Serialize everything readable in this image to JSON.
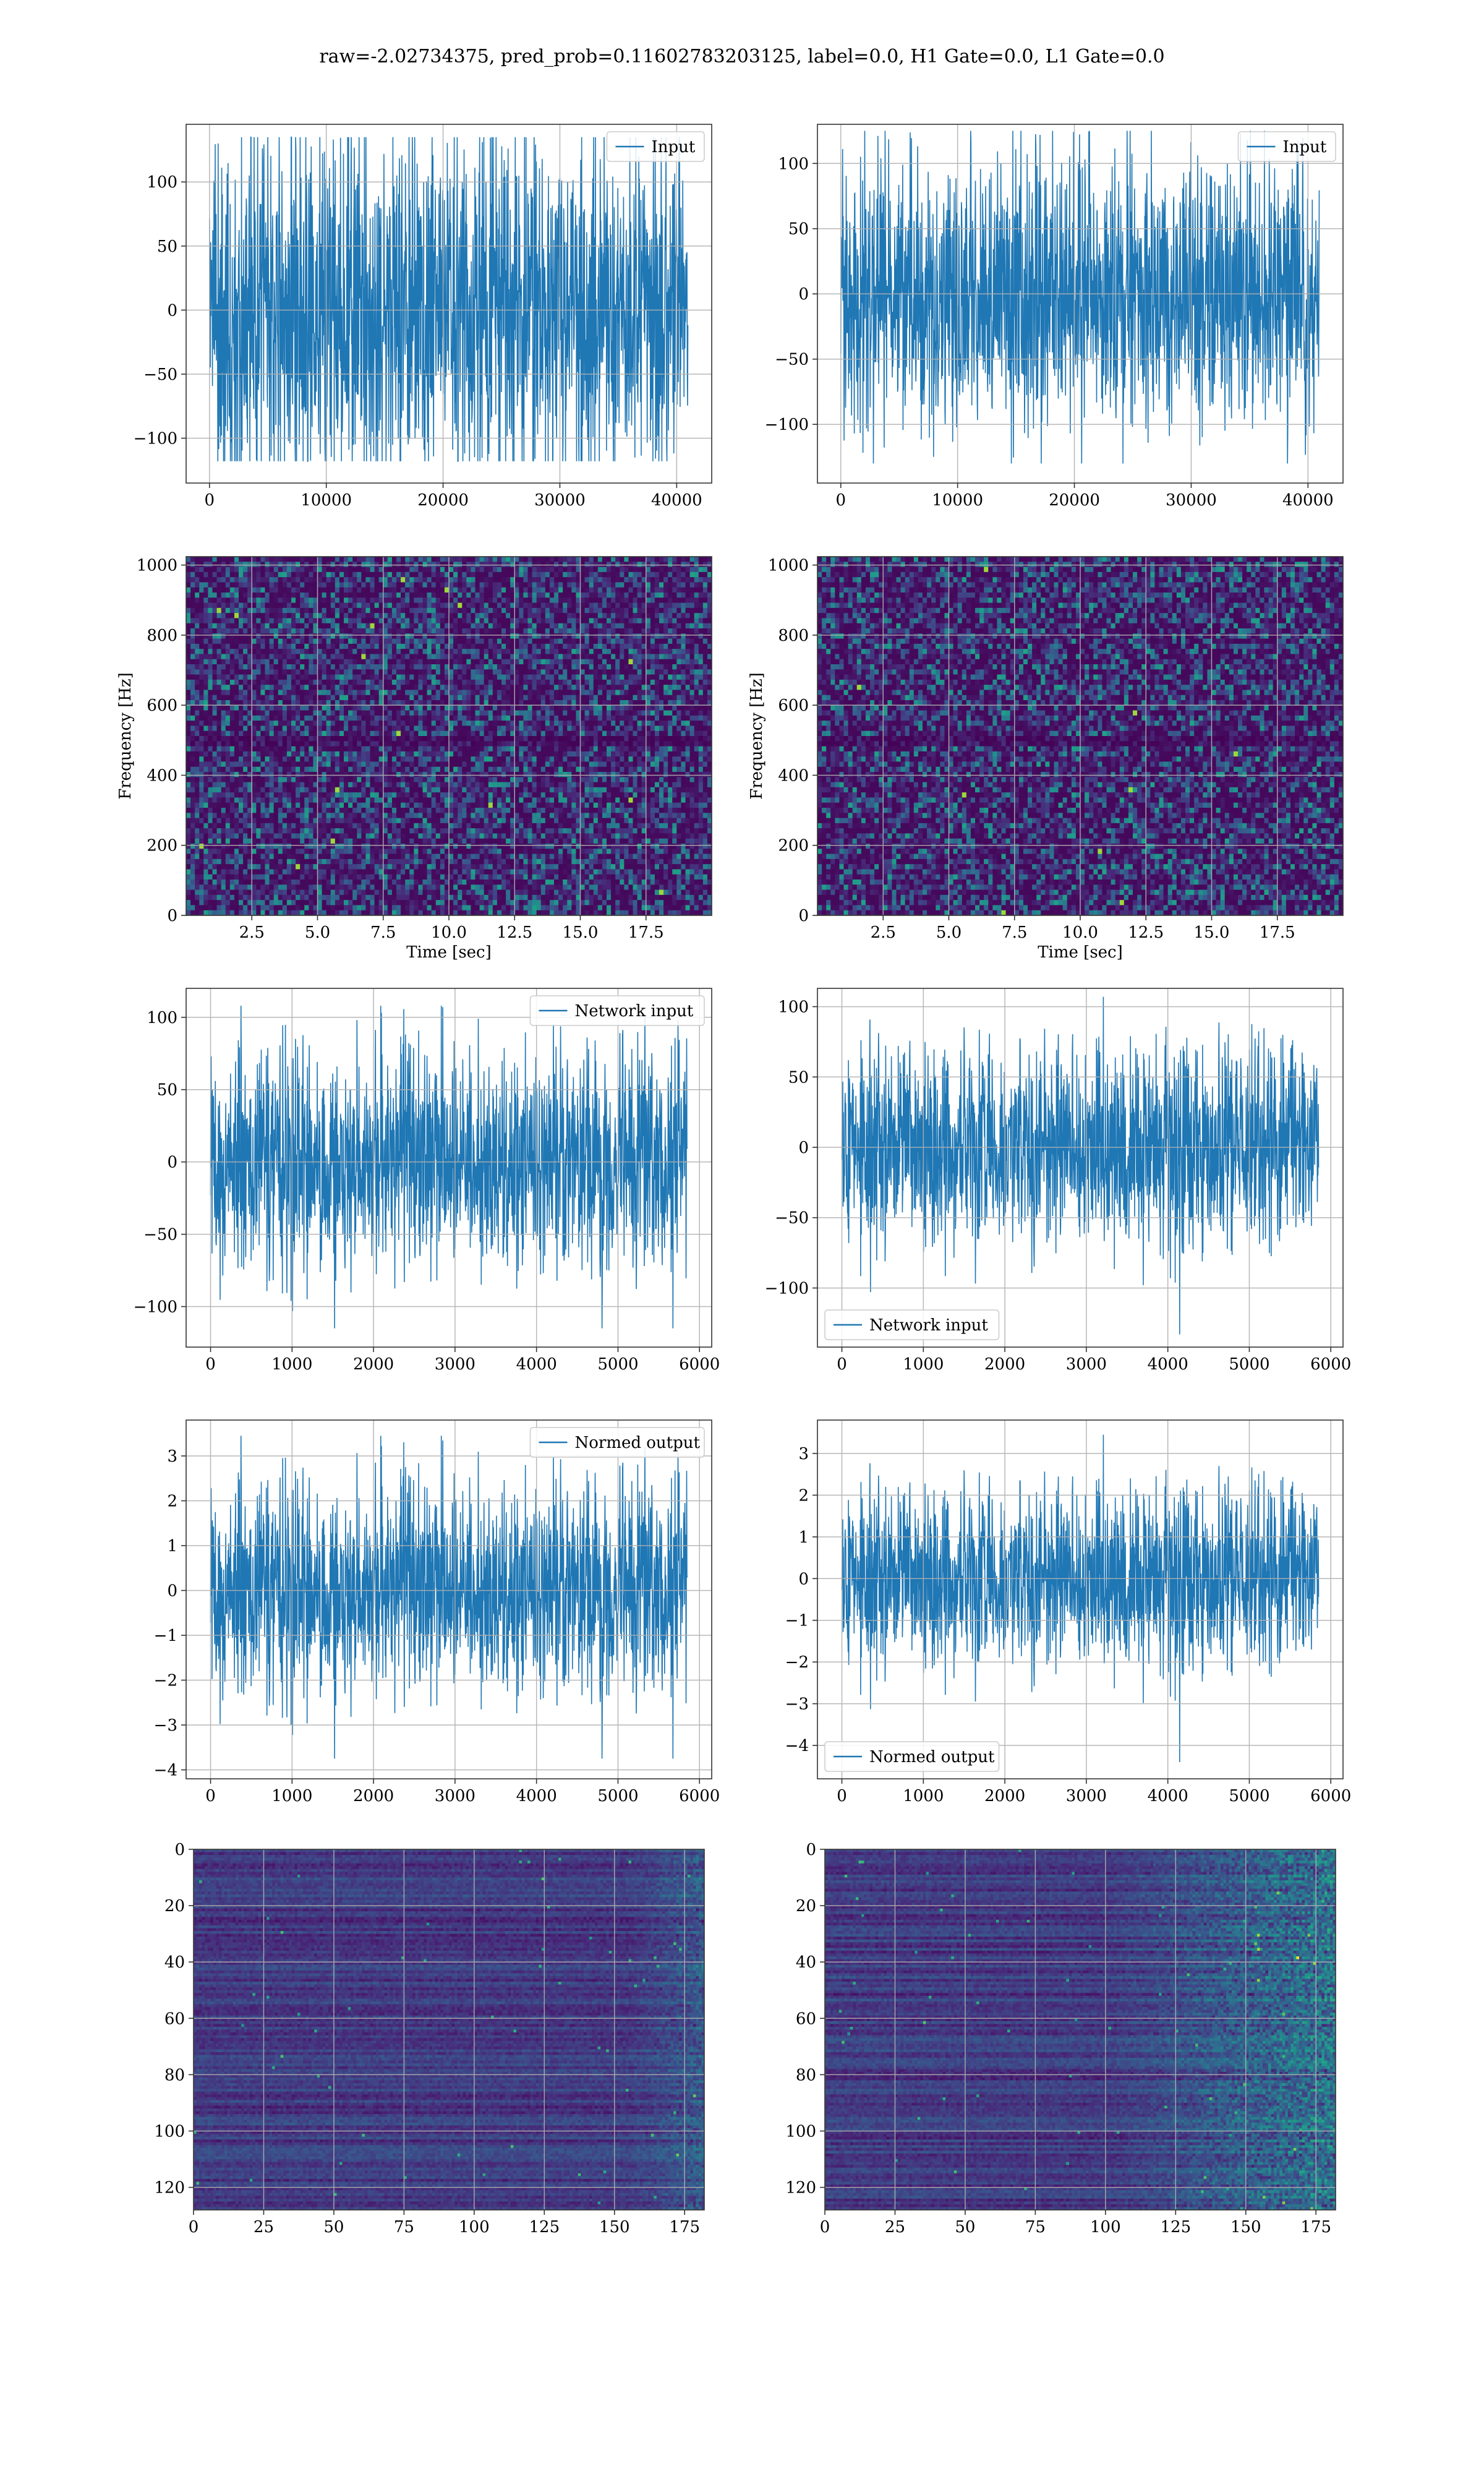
{
  "figure": {
    "title": "raw=-2.02734375, pred_prob=0.11602783203125, label=0.0, H1 Gate=0.0, L1 Gate=0.0",
    "colors": {
      "line": "#1f77b4",
      "grid": "#b0b0b0",
      "frame": "#333333"
    }
  },
  "chart_data": [
    {
      "name": "h1-input",
      "type": "line",
      "series": [
        {
          "name": "Input"
        }
      ],
      "legend": "upper right",
      "xlim": [
        -2000,
        43000
      ],
      "ylim": [
        -135,
        145
      ],
      "grid": true,
      "xticks": [
        0,
        10000,
        20000,
        30000,
        40000
      ],
      "xticklabels": [
        "0",
        "10000",
        "20000",
        "30000",
        "40000"
      ],
      "yticks": [
        -100,
        -50,
        0,
        50,
        100
      ],
      "yticklabels": [
        "−100",
        "−50",
        "0",
        "50",
        "100"
      ],
      "x_range": [
        0,
        40960
      ],
      "amp": 90,
      "peak_min": -118,
      "peak_max": 135,
      "seed": 11
    },
    {
      "name": "l1-input",
      "type": "line",
      "series": [
        {
          "name": "Input"
        }
      ],
      "legend": "upper right",
      "xlim": [
        -2000,
        43000
      ],
      "ylim": [
        -145,
        130
      ],
      "grid": true,
      "xticks": [
        0,
        10000,
        20000,
        30000,
        40000
      ],
      "xticklabels": [
        "0",
        "10000",
        "20000",
        "30000",
        "40000"
      ],
      "yticks": [
        -100,
        -50,
        0,
        50,
        100
      ],
      "yticklabels": [
        "−100",
        "−50",
        "0",
        "50",
        "100"
      ],
      "x_range": [
        0,
        40960
      ],
      "amp": 65,
      "peak_min": -130,
      "peak_max": 125,
      "seed": 23
    },
    {
      "name": "h1-spectrogram",
      "type": "heatmap",
      "xlabel": "Time [sec]",
      "ylabel": "Frequency [Hz]",
      "xlim": [
        0,
        20
      ],
      "ylim": [
        0,
        1024
      ],
      "grid": true,
      "xticks": [
        2.5,
        5.0,
        7.5,
        10.0,
        12.5,
        15.0,
        17.5
      ],
      "xticklabels": [
        "2.5",
        "5.0",
        "7.5",
        "10.0",
        "12.5",
        "15.0",
        "17.5"
      ],
      "yticks": [
        0,
        200,
        400,
        600,
        800,
        1000
      ],
      "yticklabels": [
        "0",
        "200",
        "400",
        "600",
        "800",
        "1000"
      ],
      "cmap": "viridis",
      "seed": 37
    },
    {
      "name": "l1-spectrogram",
      "type": "heatmap",
      "xlabel": "Time [sec]",
      "ylabel": "Frequency [Hz]",
      "xlim": [
        0,
        20
      ],
      "ylim": [
        0,
        1024
      ],
      "grid": true,
      "xticks": [
        2.5,
        5.0,
        7.5,
        10.0,
        12.5,
        15.0,
        17.5
      ],
      "xticklabels": [
        "2.5",
        "5.0",
        "7.5",
        "10.0",
        "12.5",
        "15.0",
        "17.5"
      ],
      "yticks": [
        0,
        200,
        400,
        600,
        800,
        1000
      ],
      "yticklabels": [
        "0",
        "200",
        "400",
        "600",
        "800",
        "1000"
      ],
      "cmap": "viridis",
      "seed": 41
    },
    {
      "name": "h1-network-input",
      "type": "line",
      "series": [
        {
          "name": "Network input"
        }
      ],
      "legend": "upper right",
      "xlim": [
        -300,
        6150
      ],
      "ylim": [
        -128,
        120
      ],
      "grid": true,
      "xticks": [
        0,
        1000,
        2000,
        3000,
        4000,
        5000,
        6000
      ],
      "xticklabels": [
        "0",
        "1000",
        "2000",
        "3000",
        "4000",
        "5000",
        "6000"
      ],
      "yticks": [
        -100,
        -50,
        0,
        50,
        100
      ],
      "yticklabels": [
        "−100",
        "−50",
        "0",
        "50",
        "100"
      ],
      "x_range": [
        0,
        5850
      ],
      "amp": 48,
      "peak_min": -115,
      "peak_max": 108,
      "seed": 53
    },
    {
      "name": "l1-network-input",
      "type": "line",
      "series": [
        {
          "name": "Network input"
        }
      ],
      "legend": "lower left",
      "xlim": [
        -300,
        6150
      ],
      "ylim": [
        -142,
        113
      ],
      "grid": true,
      "xticks": [
        0,
        1000,
        2000,
        3000,
        4000,
        5000,
        6000
      ],
      "xticklabels": [
        "0",
        "1000",
        "2000",
        "3000",
        "4000",
        "5000",
        "6000"
      ],
      "yticks": [
        -100,
        -50,
        0,
        50,
        100
      ],
      "yticklabels": [
        "−100",
        "−50",
        "0",
        "50",
        "100"
      ],
      "x_range": [
        0,
        5850
      ],
      "amp": 46,
      "peak_min": -133,
      "peak_max": 107,
      "seed": 61
    },
    {
      "name": "h1-normed-output",
      "type": "line",
      "series": [
        {
          "name": "Normed output"
        }
      ],
      "legend": "upper right",
      "xlim": [
        -300,
        6150
      ],
      "ylim": [
        -4.2,
        3.8
      ],
      "grid": true,
      "xticks": [
        0,
        1000,
        2000,
        3000,
        4000,
        5000,
        6000
      ],
      "xticklabels": [
        "0",
        "1000",
        "2000",
        "3000",
        "4000",
        "5000",
        "6000"
      ],
      "yticks": [
        -4,
        -3,
        -2,
        -1,
        0,
        1,
        2,
        3
      ],
      "yticklabels": [
        "−4",
        "−3",
        "−2",
        "−1",
        "0",
        "1",
        "2",
        "3"
      ],
      "x_range": [
        0,
        5850
      ],
      "amp": 1.5,
      "peak_min": -3.75,
      "peak_max": 3.45,
      "seed": 53
    },
    {
      "name": "l1-normed-output",
      "type": "line",
      "series": [
        {
          "name": "Normed output"
        }
      ],
      "legend": "lower left",
      "xlim": [
        -300,
        6150
      ],
      "ylim": [
        -4.8,
        3.8
      ],
      "grid": true,
      "xticks": [
        0,
        1000,
        2000,
        3000,
        4000,
        5000,
        6000
      ],
      "xticklabels": [
        "0",
        "1000",
        "2000",
        "3000",
        "4000",
        "5000",
        "6000"
      ],
      "yticks": [
        -4,
        -3,
        -2,
        -1,
        0,
        1,
        2,
        3
      ],
      "yticklabels": [
        "−4",
        "−3",
        "−2",
        "−1",
        "0",
        "1",
        "2",
        "3"
      ],
      "x_range": [
        0,
        5850
      ],
      "amp": 1.4,
      "peak_min": -4.4,
      "peak_max": 3.45,
      "seed": 61
    },
    {
      "name": "h1-feature-map",
      "type": "heatmap",
      "xlim": [
        0,
        182
      ],
      "ylim": [
        128,
        0
      ],
      "grid": true,
      "xticks": [
        0,
        25,
        50,
        75,
        100,
        125,
        150,
        175
      ],
      "xticklabels": [
        "0",
        "25",
        "50",
        "75",
        "100",
        "125",
        "150",
        "175"
      ],
      "yticks": [
        0,
        20,
        40,
        60,
        80,
        100,
        120
      ],
      "yticklabels": [
        "0",
        "20",
        "40",
        "60",
        "80",
        "100",
        "120"
      ],
      "cmap": "viridis",
      "seed": 71
    },
    {
      "name": "l1-feature-map",
      "type": "heatmap",
      "xlim": [
        0,
        182
      ],
      "ylim": [
        128,
        0
      ],
      "grid": true,
      "xticks": [
        0,
        25,
        50,
        75,
        100,
        125,
        150,
        175
      ],
      "xticklabels": [
        "0",
        "25",
        "50",
        "75",
        "100",
        "125",
        "150",
        "175"
      ],
      "yticks": [
        0,
        20,
        40,
        60,
        80,
        100,
        120
      ],
      "yticklabels": [
        "0",
        "20",
        "40",
        "60",
        "80",
        "100",
        "120"
      ],
      "cmap": "viridis",
      "seed": 83
    }
  ]
}
